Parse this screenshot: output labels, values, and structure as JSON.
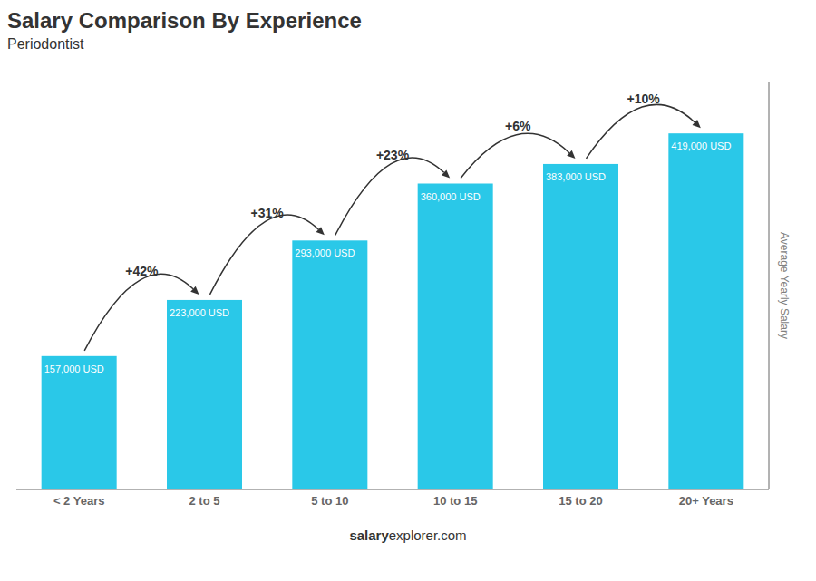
{
  "chart_data": {
    "type": "bar",
    "title": "Salary Comparison By Experience",
    "subtitle": "Periodontist",
    "categories": [
      "< 2 Years",
      "2 to 5",
      "5 to 10",
      "10 to 15",
      "15 to 20",
      "20+ Years"
    ],
    "values": [
      157000,
      223000,
      293000,
      360000,
      383000,
      419000
    ],
    "value_labels": [
      "157,000 USD",
      "223,000 USD",
      "293,000 USD",
      "360,000 USD",
      "383,000 USD",
      "419,000 USD"
    ],
    "data_labels": true,
    "color": "#2ac8e8",
    "ylabel": "Average Yearly Salary",
    "ylim": [
      0,
      480000
    ],
    "tick_labels": "x",
    "grid": false,
    "annotations": [
      "+42%",
      "+31%",
      "+23%",
      "+6%",
      "+10%"
    ],
    "footer": [
      "salary",
      "explorer.com"
    ]
  }
}
